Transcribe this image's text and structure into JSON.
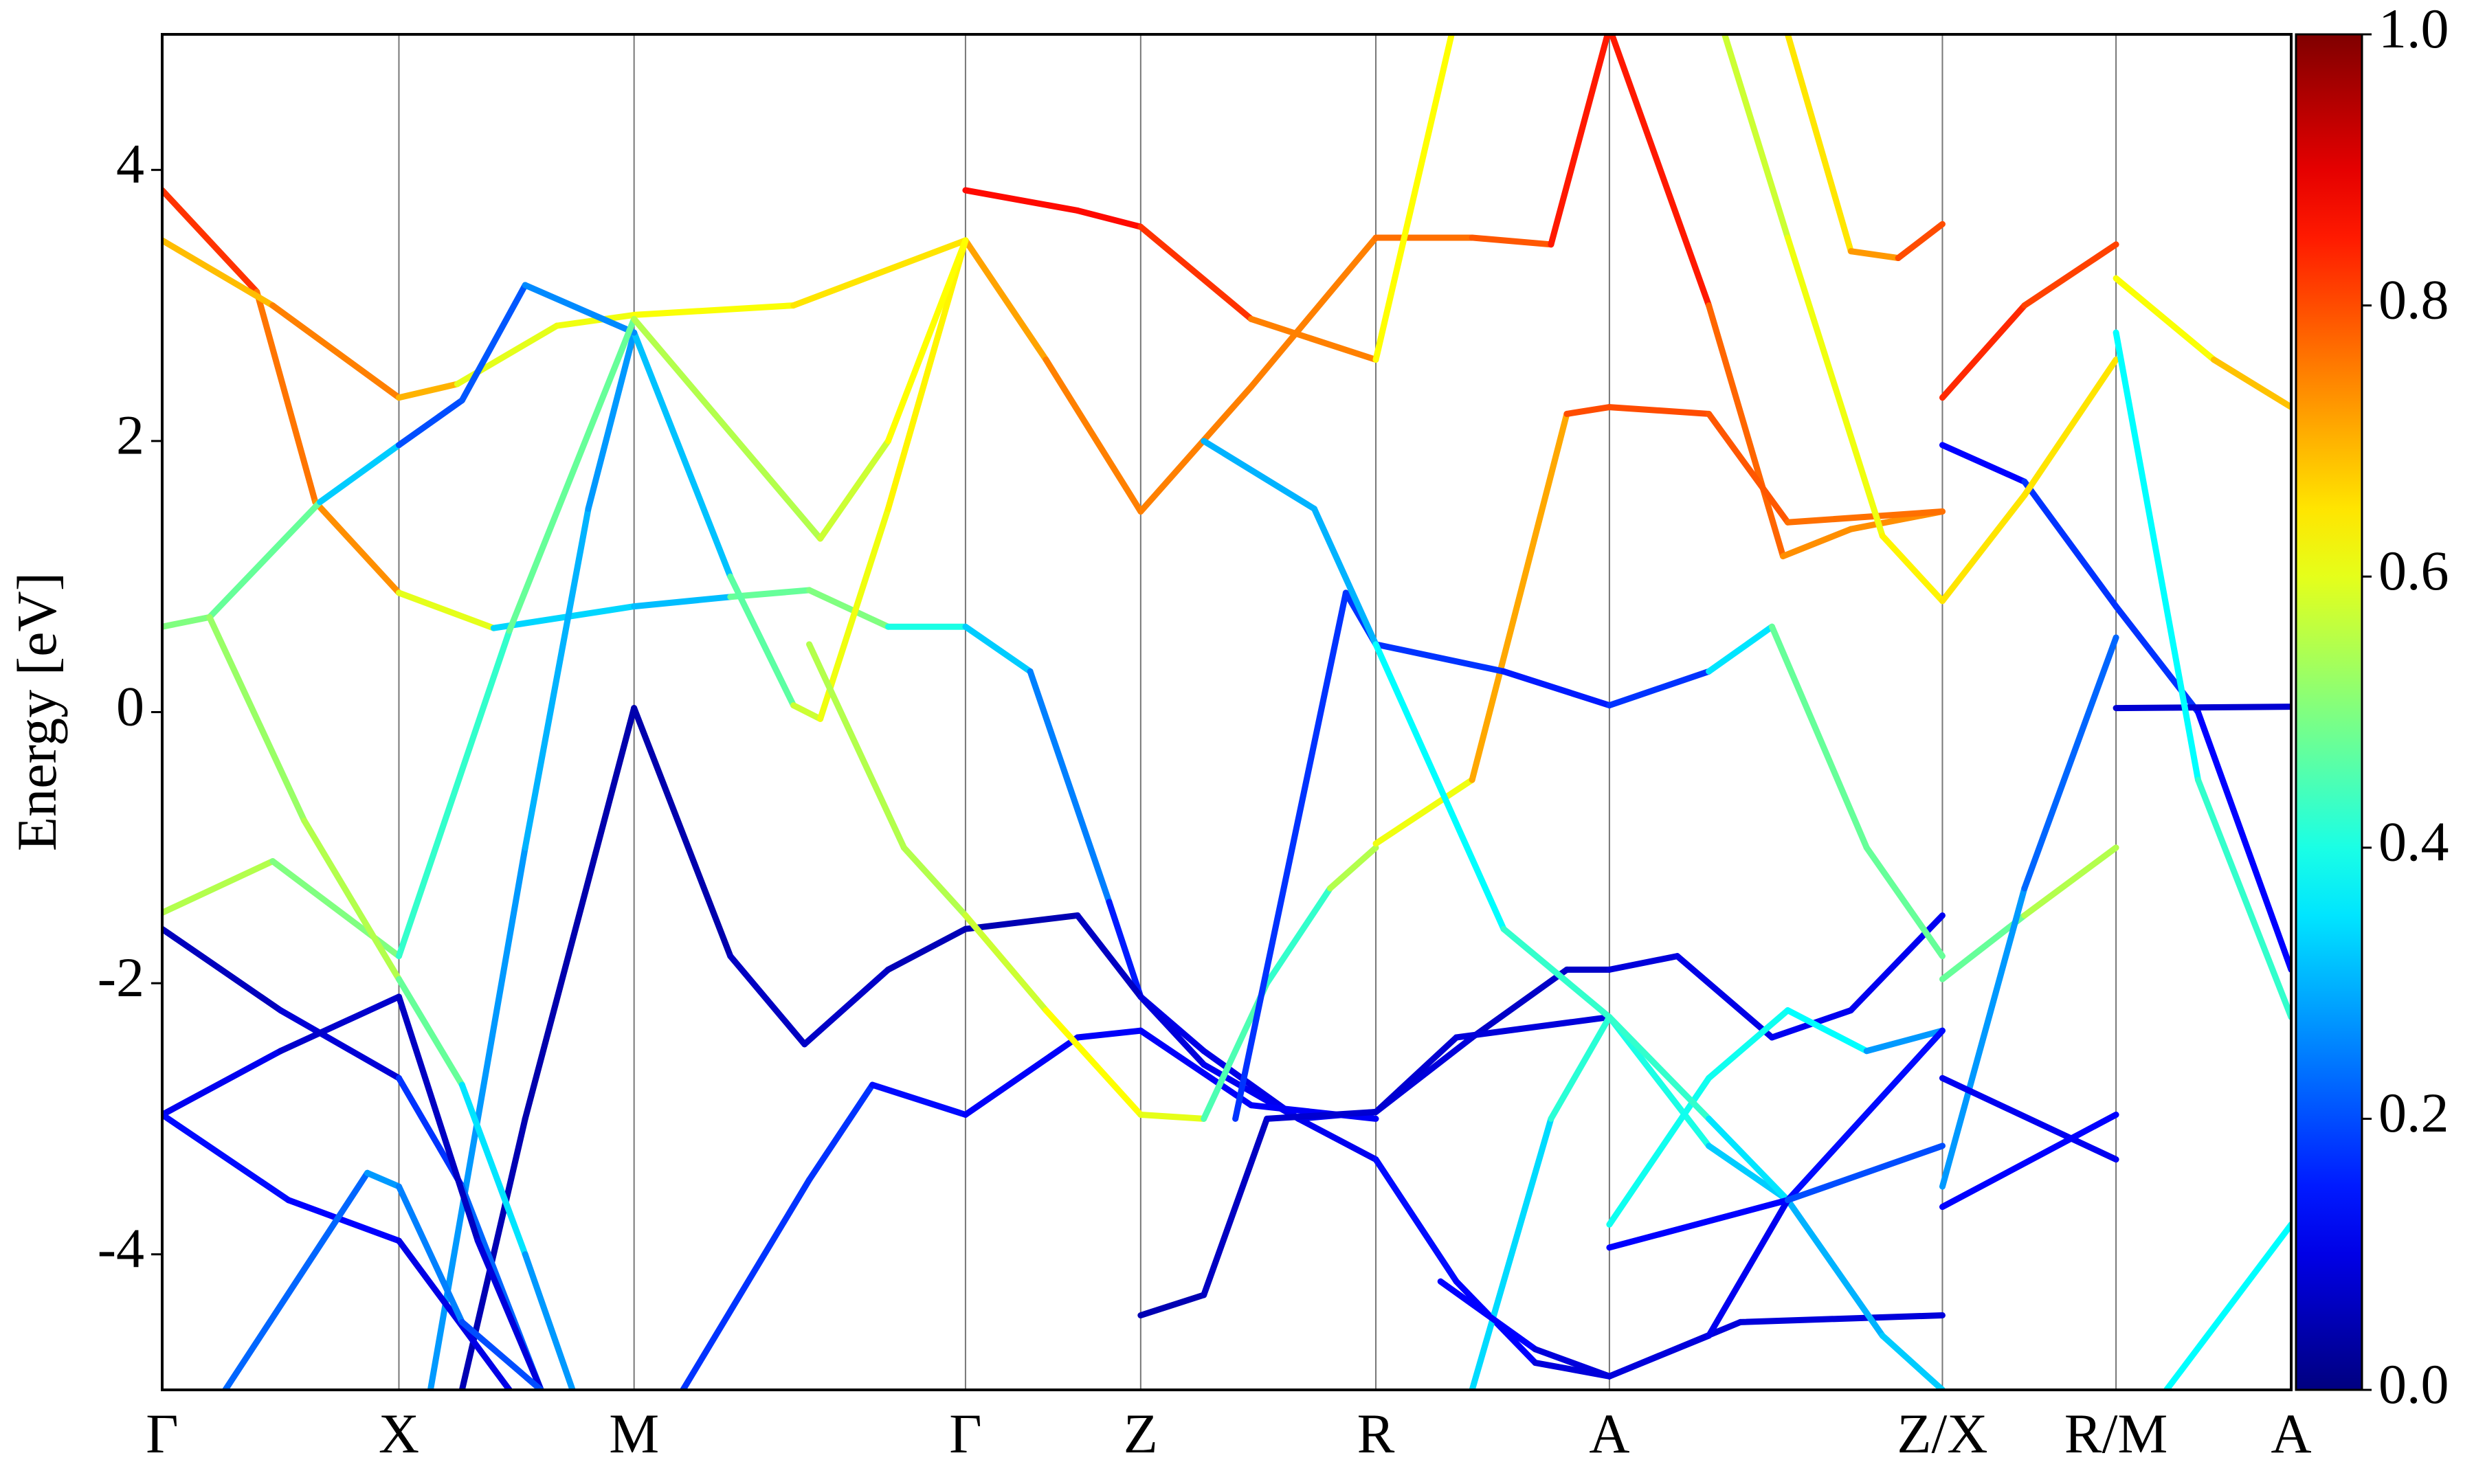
{
  "chart_data": {
    "type": "band-structure",
    "ylabel": "Energy [eV]",
    "xlim": [
      0,
      13.49
    ],
    "xticks": [
      {
        "value": 0,
        "label": "Γ"
      },
      {
        "value": 1.5,
        "label": "X"
      },
      {
        "value": 2.99,
        "label": "M"
      },
      {
        "value": 5.09,
        "label": "Γ"
      },
      {
        "value": 6.2,
        "label": "Z"
      },
      {
        "value": 7.69,
        "label": "R"
      },
      {
        "value": 9.17,
        "label": "A"
      },
      {
        "value": 11.28,
        "label": "Z/X"
      },
      {
        "value": 12.38,
        "label": "R/M"
      },
      {
        "value": 13.49,
        "label": "A"
      }
    ],
    "ylim": [
      -5,
      5
    ],
    "yticks": [
      -4,
      -2,
      0,
      2,
      4
    ],
    "colormap": "jet",
    "clim": [
      0,
      1
    ],
    "cticks": [
      {
        "value": 0,
        "label": "0.0"
      },
      {
        "value": 0.2,
        "label": "0.2"
      },
      {
        "value": 0.4,
        "label": "0.4"
      },
      {
        "value": 0.6,
        "label": "0.6"
      },
      {
        "value": 0.8,
        "label": "0.8"
      },
      {
        "value": 1,
        "label": "1.0"
      }
    ],
    "series": [
      {
        "x": [
          0,
          0.6,
          0.97,
          1.5,
          2.1,
          2.99,
          3.6,
          4.1,
          4.6,
          5.09,
          5.5,
          6.0,
          6.2,
          6.6,
          7.2,
          7.69,
          8.2,
          8.7,
          9.17,
          10.0,
          11.28
        ],
        "values": [
          3.85,
          3.1,
          1.55,
          0.88,
          0.62,
          0.78,
          0.85,
          0.9,
          0.63,
          0.63,
          0.3,
          -1.4,
          -2.1,
          -2.5,
          -3.0,
          -3.3,
          -4.2,
          -4.8,
          -4.9,
          -4.5,
          -4.45
        ],
        "weights": [
          0.85,
          0.8,
          0.72,
          0.75,
          0.45,
          0.22,
          0.4,
          0.55,
          0.45,
          0.35,
          0.3,
          0.2,
          0.1,
          0.1,
          0.1,
          0.12,
          0.15,
          0.1,
          0.08,
          0.1,
          0.08
        ]
      },
      {
        "x": [
          0,
          0.7,
          1.5,
          1.87,
          2.5,
          2.99,
          4.0,
          5.09,
          5.6,
          6.2,
          6.9,
          7.69,
          8.3,
          8.8,
          9.17,
          9.8,
          10.27,
          10.7,
          11.28
        ],
        "values": [
          3.48,
          3.0,
          2.32,
          2.42,
          2.85,
          2.93,
          3.0,
          3.48,
          2.6,
          1.48,
          2.4,
          3.5,
          3.5,
          3.45,
          5.05,
          3.0,
          1.15,
          1.35,
          1.48
        ],
        "weights": [
          0.68,
          0.7,
          0.8,
          0.6,
          0.6,
          0.62,
          0.62,
          0.68,
          0.75,
          0.75,
          0.75,
          0.75,
          0.78,
          0.8,
          0.9,
          0.8,
          0.75,
          0.72,
          0.75
        ]
      },
      {
        "x": [
          5.09,
          5.8,
          6.2,
          6.9,
          7.69,
          8.17
        ],
        "values": [
          3.85,
          3.7,
          3.58,
          2.9,
          2.6,
          5.0
        ],
        "weights": [
          0.85,
          0.88,
          0.85,
          0.8,
          0.7,
          0.55
        ]
      },
      {
        "x": [
          1.9,
          2.3,
          2.99,
          3.6,
          4.07,
          4.6,
          5.09,
          5.8,
          6.2,
          6.6,
          7.2,
          7.69,
          8.3,
          8.9,
          9.17,
          9.6,
          10.2,
          10.7,
          11.28
        ],
        "values": [
          -5,
          -3,
          0.03,
          -1.8,
          -2.45,
          -1.9,
          -1.6,
          -1.5,
          -2.1,
          -2.6,
          -3.0,
          -2.95,
          -2.4,
          -1.9,
          -1.9,
          -1.8,
          -2.4,
          -2.2,
          -1.5
        ],
        "weights": [
          0.05,
          0.05,
          0.04,
          0.05,
          0.08,
          0.06,
          0.05,
          0.05,
          0.08,
          0.1,
          0.12,
          0.1,
          0.08,
          0.06,
          0.08,
          0.1,
          0.1,
          0.12,
          0.1
        ]
      },
      {
        "x": [
          1.7,
          2.3,
          2.7,
          2.99,
          3.6,
          4.0,
          4.17,
          4.6,
          5.09
        ],
        "values": [
          -5,
          -1.0,
          1.5,
          2.8,
          1.0,
          0.05,
          -0.05,
          1.5,
          3.48
        ],
        "weights": [
          0.25,
          0.3,
          0.3,
          0.25,
          0.38,
          0.55,
          0.6,
          0.62,
          0.65
        ]
      },
      {
        "x": [
          0.3,
          1.0,
          1.5,
          1.9,
          2.3,
          2.99
        ],
        "values": [
          0.7,
          1.55,
          1.97,
          2.3,
          3.15,
          2.8
        ],
        "weights": [
          0.5,
          0.45,
          0.2,
          0.2,
          0.22,
          0.3
        ]
      },
      {
        "x": [
          0,
          0.7,
          1.5,
          2.2,
          2.99,
          3.5,
          4.17,
          4.6,
          5.09
        ],
        "values": [
          -1.48,
          -1.1,
          -1.8,
          0.6,
          2.9,
          2.2,
          1.28,
          2.0,
          3.48
        ],
        "weights": [
          0.55,
          0.55,
          0.45,
          0.4,
          0.55,
          0.55,
          0.55,
          0.6,
          0.65
        ]
      },
      {
        "x": [
          0,
          0.3,
          0.9,
          1.5,
          1.9,
          2.3,
          2.6
        ],
        "values": [
          0.63,
          0.7,
          -0.8,
          -1.97,
          -2.75,
          -4.0,
          -5
        ],
        "weights": [
          0.5,
          0.5,
          0.55,
          0.55,
          0.4,
          0.3,
          0.25
        ]
      },
      {
        "x": [
          0,
          0.75,
          1.5,
          1.9,
          2.4
        ],
        "values": [
          -1.6,
          -2.2,
          -2.7,
          -3.5,
          -5
        ],
        "weights": [
          0.05,
          0.07,
          0.1,
          0.25,
          0.2
        ]
      },
      {
        "x": [
          0,
          0.75,
          1.5,
          2.0,
          2.4
        ],
        "values": [
          -2.97,
          -2.5,
          -2.1,
          -3.9,
          -5
        ],
        "weights": [
          0.12,
          0.1,
          0.05,
          0.08,
          0.1
        ]
      },
      {
        "x": [
          0,
          0.8,
          1.5,
          2.2
        ],
        "values": [
          -2.97,
          -3.6,
          -3.9,
          -5
        ],
        "weights": [
          0.12,
          0.15,
          0.1,
          0.1
        ]
      },
      {
        "x": [
          0.4,
          1.3,
          1.5,
          1.9,
          2.4
        ],
        "values": [
          -5,
          -3.4,
          -3.5,
          -4.5,
          -5
        ],
        "weights": [
          0.2,
          0.25,
          0.3,
          0.2,
          0.2
        ]
      },
      {
        "x": [
          3.3,
          4.1,
          4.5,
          5.09,
          5.8,
          6.2,
          6.9,
          7.69
        ],
        "values": [
          -5,
          -3.45,
          -2.75,
          -2.97,
          -2.4,
          -2.35,
          -2.9,
          -3.0
        ],
        "weights": [
          0.15,
          0.2,
          0.15,
          0.12,
          0.12,
          0.12,
          0.12,
          0.12
        ]
      },
      {
        "x": [
          6.2,
          6.6,
          7.0,
          7.69,
          8.2,
          9.17
        ],
        "values": [
          -4.45,
          -4.3,
          -3.0,
          -2.95,
          -2.4,
          -2.25
        ],
        "weights": [
          0.05,
          0.05,
          0.08,
          0.08,
          0.08,
          0.1
        ]
      },
      {
        "x": [
          4.1,
          4.7,
          5.09,
          5.6,
          6.2,
          6.6,
          7.0,
          7.4,
          7.69
        ],
        "values": [
          0.5,
          -1.0,
          -1.5,
          -2.2,
          -2.97,
          -3.0,
          -2.0,
          -1.3,
          -1.0
        ],
        "weights": [
          0.55,
          0.55,
          0.55,
          0.6,
          0.65,
          0.55,
          0.35,
          0.5,
          0.6
        ]
      },
      {
        "x": [
          7.69,
          8.3,
          8.9,
          9.17,
          9.8,
          10.3,
          11.28
        ],
        "values": [
          -0.97,
          -0.5,
          2.2,
          2.25,
          2.2,
          1.4,
          1.48
        ],
        "weights": [
          0.6,
          0.62,
          0.8,
          0.8,
          0.8,
          0.78,
          0.75
        ]
      },
      {
        "x": [
          6.8,
          7.5,
          7.69,
          8.5,
          9.17,
          9.8,
          10.2,
          10.8,
          11.28
        ],
        "values": [
          -3.0,
          0.88,
          0.5,
          0.3,
          0.05,
          0.3,
          0.63,
          -1.0,
          -1.8
        ],
        "weights": [
          0.15,
          0.2,
          0.15,
          0.2,
          0.1,
          0.25,
          0.45,
          0.5,
          0.45
        ]
      },
      {
        "x": [
          6.6,
          7.3,
          7.69,
          8.5,
          9.17,
          9.8,
          10.3,
          10.9,
          11.28
        ],
        "values": [
          2.0,
          1.5,
          0.5,
          -1.6,
          -2.25,
          -3.2,
          -3.6,
          -4.6,
          -5
        ],
        "weights": [
          0.35,
          0.25,
          0.35,
          0.4,
          0.45,
          0.35,
          0.3,
          0.3,
          0.35
        ]
      },
      {
        "x": [
          9.17,
          9.8,
          10.3,
          10.8,
          11.28
        ],
        "values": [
          -3.78,
          -2.7,
          -2.2,
          -2.5,
          -2.35
        ],
        "weights": [
          0.4,
          0.38,
          0.4,
          0.35,
          0.2
        ]
      },
      {
        "x": [
          8.3,
          8.8,
          9.17,
          9.8,
          10.3
        ],
        "values": [
          -5,
          -3,
          -2.25,
          -3.0,
          -3.6
        ],
        "weights": [
          0.3,
          0.38,
          0.45,
          0.4,
          0.3
        ]
      },
      {
        "x": [
          8.1,
          8.7,
          9.17,
          9.8,
          10.3,
          11.28
        ],
        "values": [
          -4.2,
          -4.7,
          -4.9,
          -4.6,
          -3.6,
          -2.35
        ],
        "weights": [
          0.15,
          0.1,
          0.08,
          0.1,
          0.12,
          0.15
        ]
      },
      {
        "x": [
          9.17,
          10.3,
          11.28
        ],
        "values": [
          -3.95,
          -3.6,
          -3.2
        ],
        "weights": [
          0.1,
          0.15,
          0.25
        ]
      },
      {
        "x": [
          9.9,
          10.3,
          10.9,
          11.28
        ],
        "values": [
          5,
          3.5,
          1.3,
          0.82
        ],
        "weights": [
          0.55,
          0.6,
          0.62,
          0.65
        ]
      },
      {
        "x": [
          10.3,
          10.7,
          11.0,
          11.28
        ],
        "values": [
          5,
          3.4,
          3.35,
          3.6
        ],
        "weights": [
          0.6,
          0.7,
          0.75,
          0.85
        ]
      },
      {
        "x": [
          11.28,
          11.8,
          12.38,
          12.9,
          13.49
        ],
        "values": [
          1.97,
          1.7,
          0.78,
          0,
          -1.9
        ],
        "weights": [
          0.1,
          0.15,
          0.2,
          0.15,
          0.1
        ]
      },
      {
        "x": [
          11.28,
          11.8,
          12.38
        ],
        "values": [
          2.32,
          3.0,
          3.45
        ],
        "weights": [
          0.85,
          0.82,
          0.8
        ]
      },
      {
        "x": [
          12.38,
          13.0,
          13.49
        ],
        "values": [
          3.2,
          2.6,
          2.25
        ],
        "weights": [
          0.62,
          0.62,
          0.75
        ]
      },
      {
        "x": [
          11.28,
          11.8,
          12.38
        ],
        "values": [
          0.82,
          1.6,
          2.6
        ],
        "weights": [
          0.65,
          0.65,
          0.65
        ]
      },
      {
        "x": [
          11.28,
          11.8,
          12.38
        ],
        "values": [
          -1.97,
          -1.5,
          -1.0
        ],
        "weights": [
          0.45,
          0.5,
          0.6
        ]
      },
      {
        "x": [
          11.28,
          11.8,
          12.38
        ],
        "values": [
          -3.5,
          -1.3,
          0.55
        ],
        "weights": [
          0.3,
          0.25,
          0.2
        ]
      },
      {
        "x": [
          12.38,
          13.49
        ],
        "values": [
          0.03,
          0.04
        ],
        "weights": [
          0.08,
          0.08
        ]
      },
      {
        "x": [
          11.28,
          12.38
        ],
        "values": [
          -2.7,
          -3.3
        ],
        "weights": [
          0.1,
          0.12
        ]
      },
      {
        "x": [
          11.28,
          12.38
        ],
        "values": [
          -3.65,
          -2.97
        ],
        "weights": [
          0.15,
          0.1
        ]
      },
      {
        "x": [
          12.38,
          12.9,
          13.49
        ],
        "values": [
          2.8,
          -0.5,
          -2.25
        ],
        "weights": [
          0.35,
          0.4,
          0.45
        ]
      },
      {
        "x": [
          12.7,
          13.49
        ],
        "values": [
          -5,
          -3.78
        ],
        "weights": [
          0.3,
          0.45
        ]
      }
    ]
  }
}
